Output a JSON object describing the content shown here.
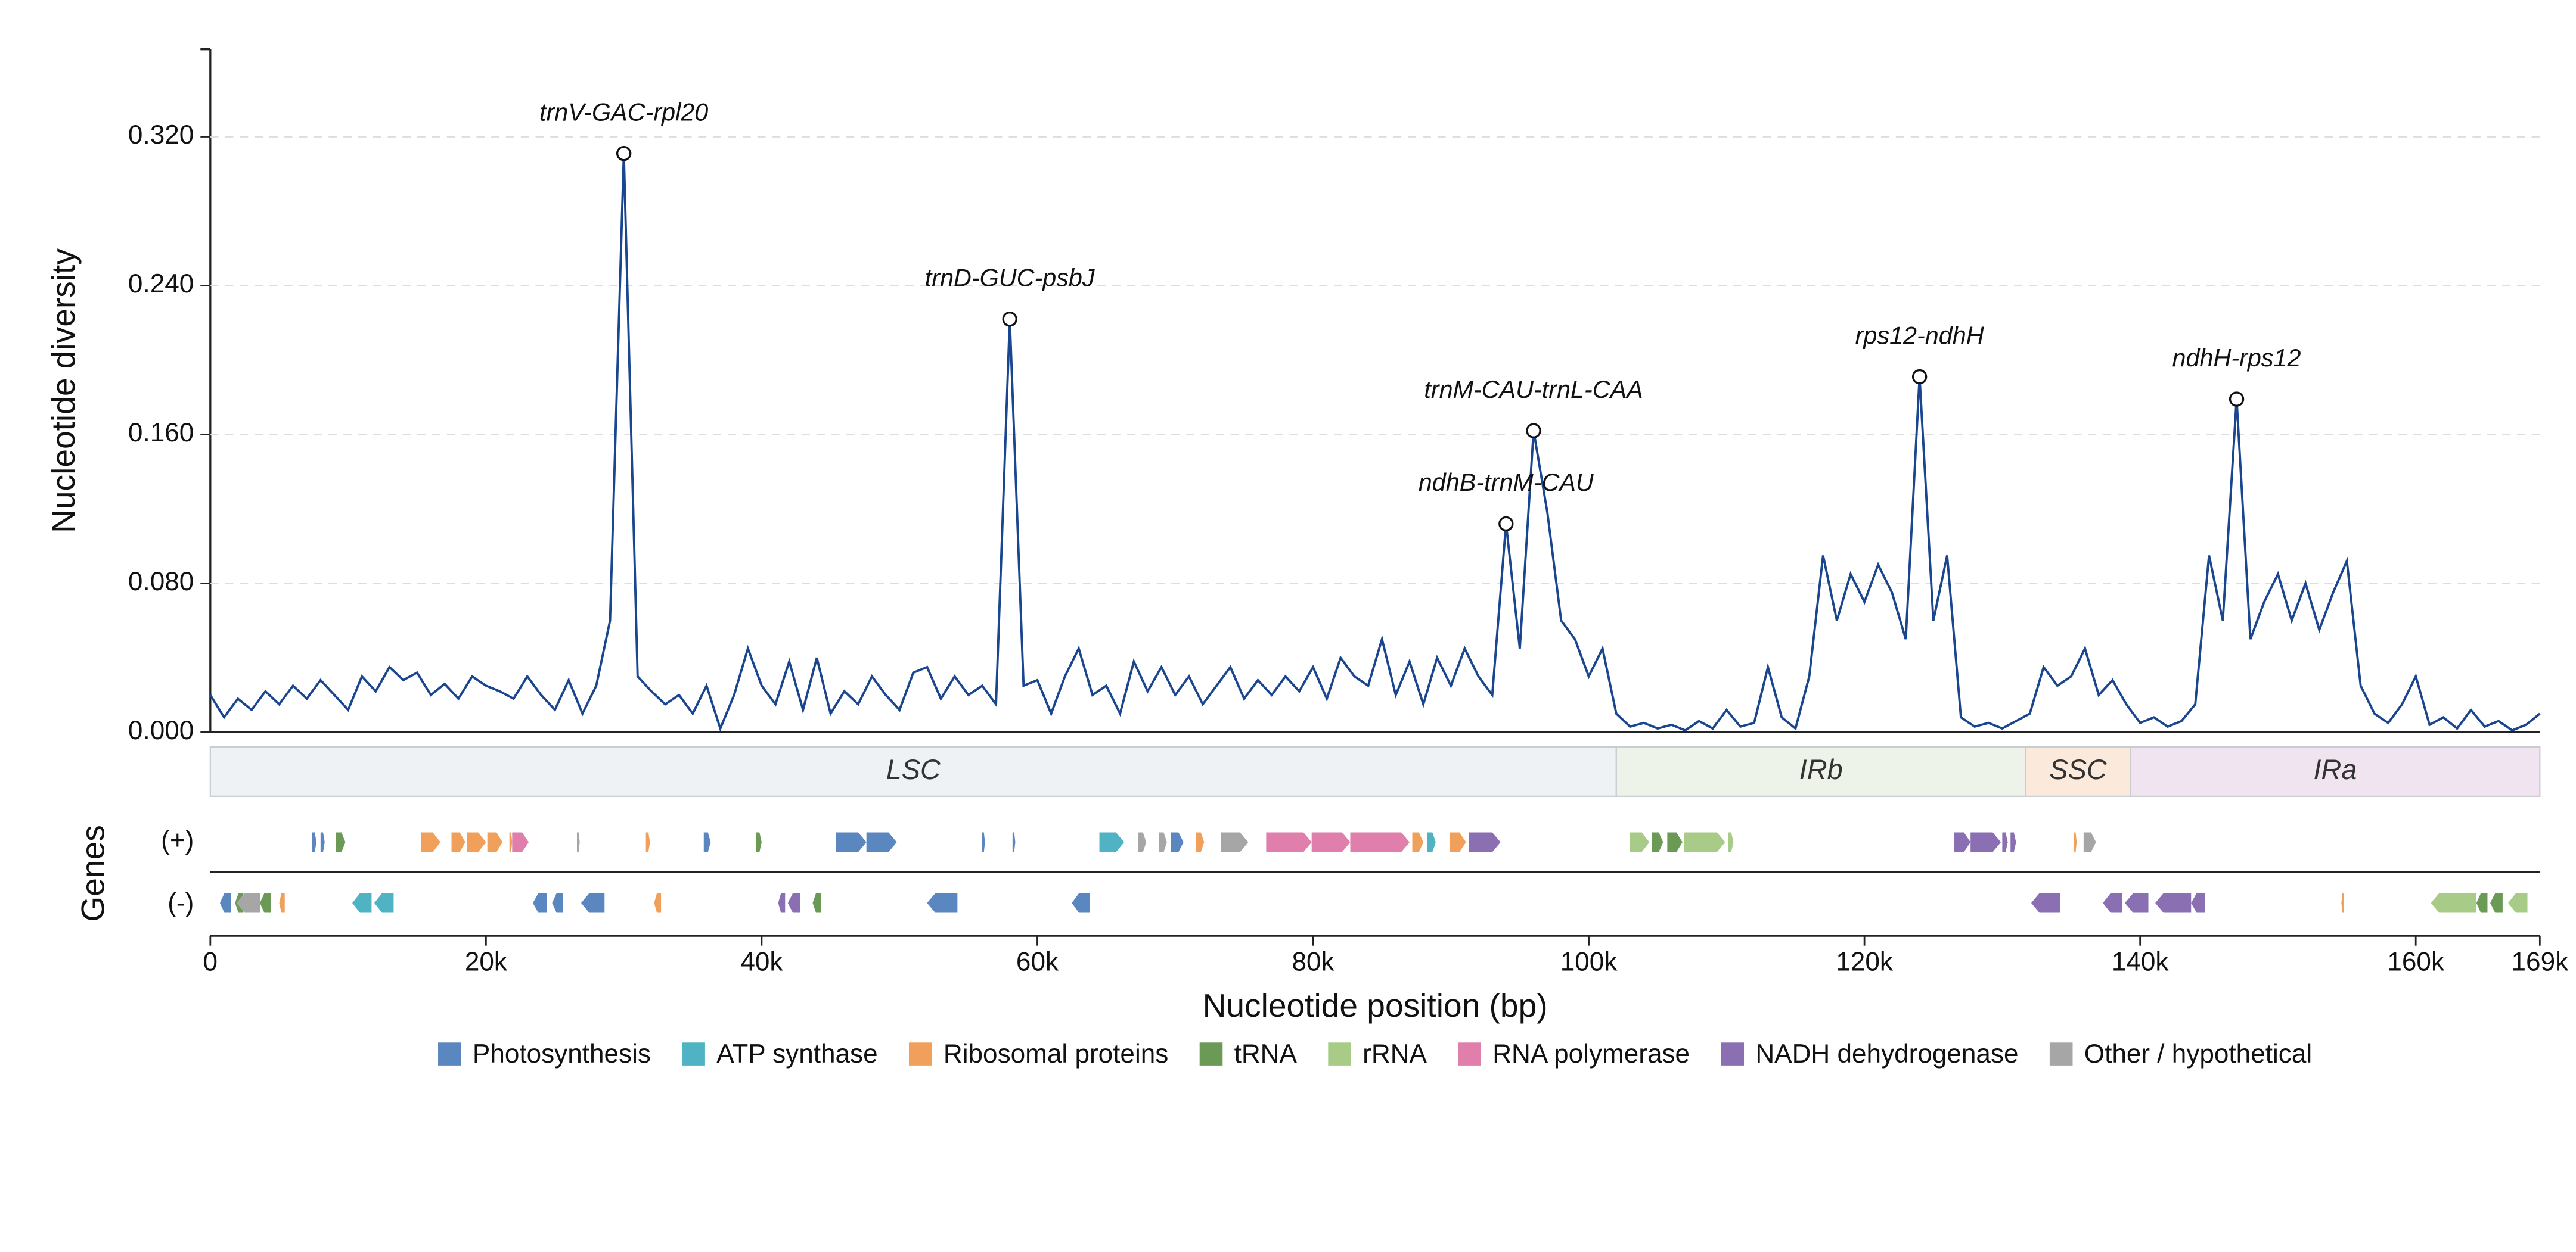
{
  "chart_data": {
    "type": "line",
    "y_label": "Nucleotide diversity",
    "x_label": "Nucleotide position (bp)",
    "genes_label": "Genes",
    "plus_label": "(+)",
    "minus_label": "(-)",
    "color": "#1a4690",
    "grid": true,
    "xlim": [
      0,
      169000
    ],
    "ylim": [
      0,
      0.367
    ],
    "yticks": [
      {
        "value": 0,
        "label": "0.000"
      },
      {
        "value": 0.08,
        "label": "0.080"
      },
      {
        "value": 0.16,
        "label": "0.160"
      },
      {
        "value": 0.24,
        "label": "0.240"
      },
      {
        "value": 0.32,
        "label": "0.320"
      }
    ],
    "xticks": [
      0,
      {
        "value": 20000,
        "label": "20k"
      },
      {
        "value": 40000,
        "label": "40k"
      },
      {
        "value": 60000,
        "label": "60k"
      },
      {
        "value": 80000,
        "label": "80k"
      },
      {
        "value": 100000,
        "label": "100k"
      },
      {
        "value": 120000,
        "label": "120k"
      },
      {
        "value": 140000,
        "label": "140k"
      },
      {
        "value": 160000,
        "label": "160k"
      },
      {
        "value": 169000,
        "label": "169k"
      }
    ],
    "x": [
      0,
      1000,
      2000,
      3000,
      4000,
      5000,
      6000,
      7000,
      8000,
      9000,
      10000,
      11000,
      12000,
      13000,
      14000,
      15000,
      16000,
      17000,
      18000,
      19000,
      20000,
      21000,
      22000,
      23000,
      24000,
      25000,
      26000,
      27000,
      28000,
      29000,
      30000,
      31000,
      32000,
      33000,
      34000,
      35000,
      36000,
      37000,
      38000,
      39000,
      40000,
      41000,
      42000,
      43000,
      44000,
      45000,
      46000,
      47000,
      48000,
      49000,
      50000,
      51000,
      52000,
      53000,
      54000,
      55000,
      56000,
      57000,
      58000,
      59000,
      60000,
      61000,
      62000,
      63000,
      64000,
      65000,
      66000,
      67000,
      68000,
      69000,
      70000,
      71000,
      72000,
      73000,
      74000,
      75000,
      76000,
      77000,
      78000,
      79000,
      80000,
      81000,
      82000,
      83000,
      84000,
      85000,
      86000,
      87000,
      88000,
      89000,
      90000,
      91000,
      92000,
      93000,
      94000,
      95000,
      96000,
      97000,
      98000,
      99000,
      100000,
      101000,
      102000,
      103000,
      104000,
      105000,
      106000,
      107000,
      108000,
      109000,
      110000,
      111000,
      112000,
      113000,
      114000,
      115000,
      116000,
      117000,
      118000,
      119000,
      120000,
      121000,
      122000,
      123000,
      124000,
      125000,
      126000,
      127000,
      128000,
      129000,
      130000,
      131000,
      132000,
      133000,
      134000,
      135000,
      136000,
      137000,
      138000,
      139000,
      140000,
      141000,
      142000,
      143000,
      144000,
      145000,
      146000,
      147000,
      148000,
      149000,
      150000,
      151000,
      152000,
      153000,
      154000,
      155000,
      156000,
      157000,
      158000,
      159000,
      160000,
      161000,
      162000,
      163000,
      164000,
      165000,
      166000,
      167000,
      168000,
      169000
    ],
    "values": [
      0.02,
      0.008,
      0.018,
      0.012,
      0.022,
      0.015,
      0.025,
      0.018,
      0.028,
      0.02,
      0.012,
      0.03,
      0.022,
      0.035,
      0.028,
      0.032,
      0.02,
      0.026,
      0.018,
      0.03,
      0.025,
      0.022,
      0.018,
      0.03,
      0.02,
      0.012,
      0.028,
      0.01,
      0.025,
      0.06,
      0.311,
      0.03,
      0.022,
      0.015,
      0.02,
      0.01,
      0.025,
      0.002,
      0.02,
      0.045,
      0.025,
      0.015,
      0.038,
      0.012,
      0.04,
      0.01,
      0.022,
      0.015,
      0.03,
      0.02,
      0.012,
      0.032,
      0.035,
      0.018,
      0.03,
      0.02,
      0.025,
      0.015,
      0.222,
      0.025,
      0.028,
      0.01,
      0.03,
      0.045,
      0.02,
      0.025,
      0.01,
      0.038,
      0.022,
      0.035,
      0.02,
      0.03,
      0.015,
      0.025,
      0.035,
      0.018,
      0.028,
      0.02,
      0.03,
      0.022,
      0.035,
      0.018,
      0.04,
      0.03,
      0.025,
      0.05,
      0.02,
      0.038,
      0.015,
      0.04,
      0.025,
      0.045,
      0.03,
      0.02,
      0.112,
      0.045,
      0.162,
      0.118,
      0.06,
      0.05,
      0.03,
      0.045,
      0.01,
      0.003,
      0.005,
      0.002,
      0.004,
      0.001,
      0.006,
      0.002,
      0.012,
      0.003,
      0.005,
      0.035,
      0.008,
      0.002,
      0.03,
      0.095,
      0.06,
      0.085,
      0.07,
      0.09,
      0.075,
      0.05,
      0.191,
      0.06,
      0.095,
      0.008,
      0.003,
      0.005,
      0.002,
      0.006,
      0.01,
      0.035,
      0.025,
      0.03,
      0.045,
      0.02,
      0.028,
      0.015,
      0.005,
      0.008,
      0.003,
      0.006,
      0.015,
      0.095,
      0.06,
      0.179,
      0.05,
      0.07,
      0.085,
      0.06,
      0.08,
      0.055,
      0.075,
      0.092,
      0.025,
      0.01,
      0.005,
      0.015,
      0.03,
      0.004,
      0.008,
      0.002,
      0.012,
      0.003,
      0.006,
      0.001,
      0.004,
      0.01
    ],
    "peaks": [
      {
        "label": "trnV-GAC-rpl20",
        "x": 30000,
        "y": 0.311
      },
      {
        "label": "trnD-GUC-psbJ",
        "x": 58000,
        "y": 0.222
      },
      {
        "label": "trnM-CAU-trnL-CAA",
        "x": 96000,
        "y": 0.162
      },
      {
        "label": "ndhB-trnM-CAU",
        "x": 94000,
        "y": 0.112
      },
      {
        "label": "rps12-ndhH",
        "x": 124000,
        "y": 0.191
      },
      {
        "label": "ndhH-rps12",
        "x": 147000,
        "y": 0.179
      }
    ],
    "regions": [
      {
        "name": "LSC",
        "start": 0,
        "end": 102000,
        "color": "#eef2f5"
      },
      {
        "name": "IRb",
        "start": 102000,
        "end": 131700,
        "color": "#edf3e9"
      },
      {
        "name": "SSC",
        "start": 131700,
        "end": 139300,
        "color": "#fbeadb"
      },
      {
        "name": "IRa",
        "start": 139300,
        "end": 169000,
        "color": "#f1e4f1"
      }
    ],
    "gene_groups": [
      {
        "name": "Photosynthesis",
        "color": "#5b87c0",
        "plus": [
          [
            7400,
            7700
          ],
          [
            8000,
            8300
          ],
          [
            35800,
            36300
          ],
          [
            45400,
            47600
          ],
          [
            47600,
            49800
          ],
          [
            56000,
            56200
          ],
          [
            58200,
            58400
          ],
          [
            69700,
            70600
          ]
        ],
        "minus": [
          [
            700,
            1500
          ],
          [
            23400,
            24400
          ],
          [
            24800,
            25600
          ],
          [
            26900,
            28600
          ],
          [
            52000,
            54200
          ],
          [
            62500,
            63800
          ]
        ]
      },
      {
        "name": "ATP synthase",
        "color": "#4fb3c3",
        "plus": [
          [
            64500,
            66300
          ],
          [
            88300,
            88900
          ]
        ],
        "minus": [
          [
            10300,
            11700
          ],
          [
            11900,
            13300
          ]
        ]
      },
      {
        "name": "Ribosomal proteins",
        "color": "#f0a05a",
        "plus": [
          [
            15300,
            16700
          ],
          [
            17500,
            18500
          ],
          [
            18600,
            20000
          ],
          [
            20100,
            21200
          ],
          [
            21700,
            21900
          ],
          [
            31600,
            31900
          ],
          [
            71500,
            72100
          ],
          [
            87200,
            88000
          ],
          [
            89900,
            91100
          ],
          [
            135200,
            135400
          ]
        ],
        "minus": [
          [
            5000,
            5400
          ],
          [
            32200,
            32700
          ],
          [
            154600,
            154800
          ]
        ]
      },
      {
        "name": "tRNA",
        "color": "#6a9a55",
        "plus": [
          [
            9100,
            9800
          ],
          [
            39600,
            40000
          ],
          [
            104600,
            105400
          ],
          [
            105700,
            106800
          ]
        ],
        "minus": [
          [
            1800,
            2400
          ],
          [
            3600,
            4400
          ],
          [
            43700,
            44300
          ],
          [
            164400,
            165200
          ],
          [
            165400,
            166300
          ]
        ]
      },
      {
        "name": "rRNA",
        "color": "#a8cc88",
        "plus": [
          [
            103000,
            104400
          ],
          [
            106900,
            109900
          ],
          [
            110100,
            110500
          ]
        ],
        "minus": [
          [
            161100,
            164400
          ],
          [
            166700,
            168100
          ]
        ]
      },
      {
        "name": "RNA polymerase",
        "color": "#e07fab",
        "plus": [
          [
            21900,
            23100
          ],
          [
            76600,
            79900
          ],
          [
            79900,
            82700
          ],
          [
            82700,
            87000
          ]
        ],
        "minus": []
      },
      {
        "name": "NADH dehydrogenase",
        "color": "#8b6fb3",
        "plus": [
          [
            91300,
            93600
          ],
          [
            126500,
            127700
          ],
          [
            127700,
            129900
          ],
          [
            130000,
            130400
          ],
          [
            130600,
            131000
          ]
        ],
        "minus": [
          [
            41200,
            41700
          ],
          [
            41900,
            42800
          ],
          [
            132100,
            134200
          ],
          [
            137300,
            138700
          ],
          [
            138900,
            140600
          ],
          [
            141100,
            143700
          ],
          [
            143700,
            144700
          ]
        ]
      },
      {
        "name": "Other / hypothetical",
        "color": "#a6a6a6",
        "plus": [
          [
            26600,
            26800
          ],
          [
            67300,
            67900
          ],
          [
            68800,
            69400
          ],
          [
            73300,
            75300
          ],
          [
            135900,
            136800
          ]
        ],
        "minus": [
          [
            1900,
            3600
          ]
        ]
      }
    ]
  }
}
